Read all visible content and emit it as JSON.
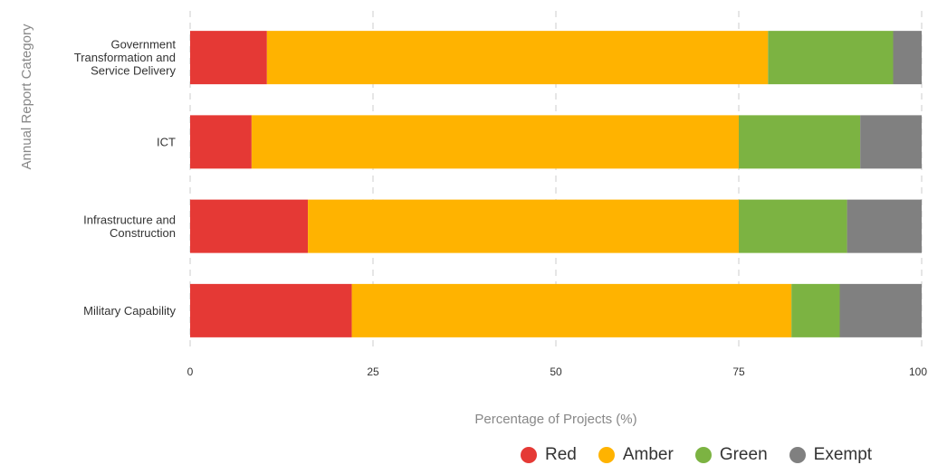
{
  "chart_data": {
    "type": "bar",
    "orientation": "horizontal",
    "stacked": true,
    "xlabel": "Percentage of Projects (%)",
    "ylabel": "Annual Report Category",
    "xlim": [
      0,
      100
    ],
    "xticks": [
      "0",
      "25",
      "50",
      "75",
      "100"
    ],
    "grid": "vertical dashed",
    "legend_position": "bottom-right",
    "categories": [
      [
        "Government",
        "Transformation and",
        "Service Delivery"
      ],
      [
        "ICT"
      ],
      [
        "Infrastructure and",
        "Construction"
      ],
      [
        "Military Capability"
      ]
    ],
    "series": [
      {
        "name": "Red",
        "color": "#e53935",
        "values": [
          10.5,
          8.4,
          16.1,
          22.1
        ]
      },
      {
        "name": "Amber",
        "color": "#ffb300",
        "values": [
          68.5,
          66.6,
          58.9,
          60.1
        ]
      },
      {
        "name": "Green",
        "color": "#7cb342",
        "values": [
          17.1,
          16.6,
          14.8,
          6.6
        ]
      },
      {
        "name": "Exempt",
        "color": "#808080",
        "values": [
          3.9,
          8.4,
          10.2,
          11.2
        ]
      }
    ]
  }
}
